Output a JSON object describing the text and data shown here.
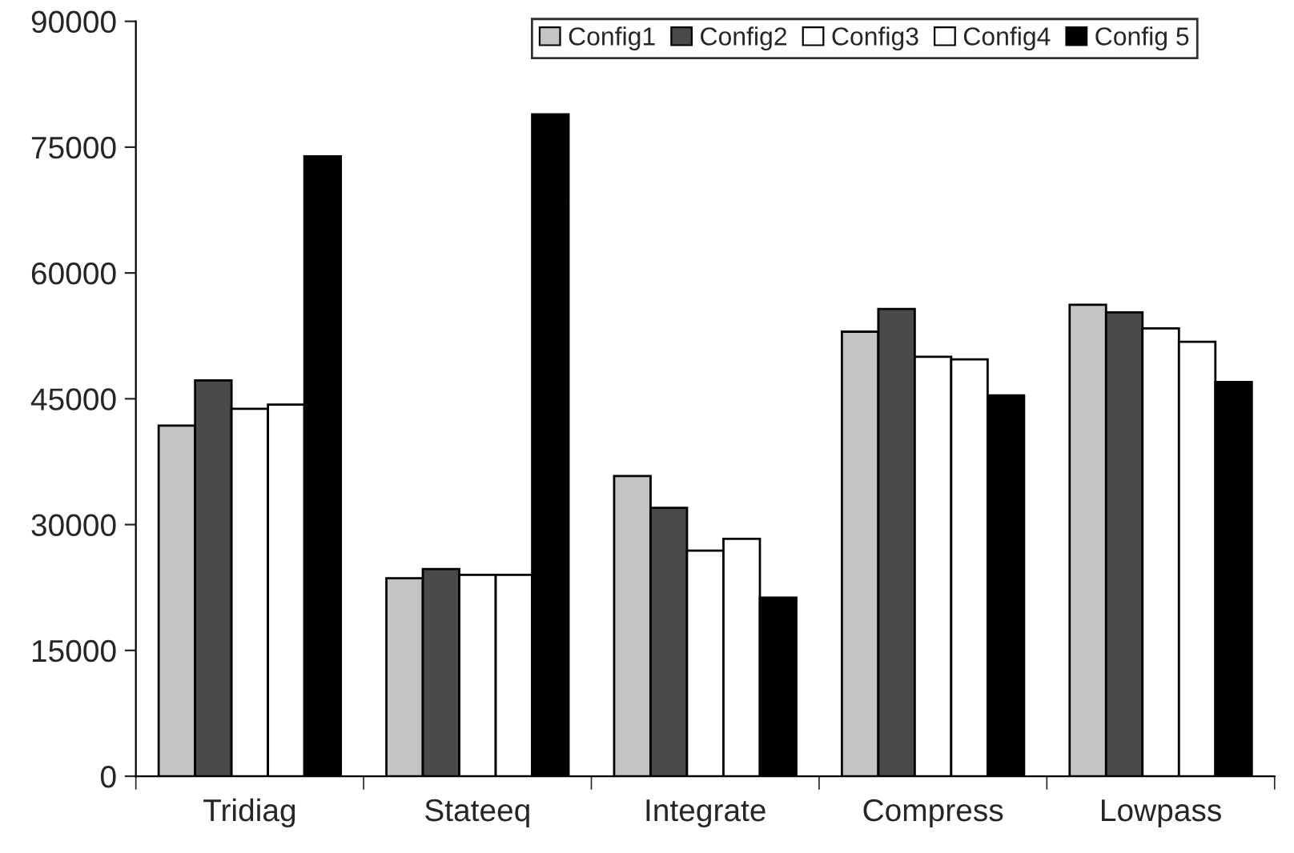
{
  "chart_data": {
    "type": "bar",
    "categories": [
      "Tridiag",
      "Stateeq",
      "Integrate",
      "Compress",
      "Lowpass"
    ],
    "series": [
      {
        "name": "Config1",
        "color": "#c4c4c4",
        "values": [
          41800,
          23600,
          35800,
          53000,
          56200
        ]
      },
      {
        "name": "Config2",
        "color": "#4a4a4a",
        "values": [
          47200,
          24700,
          32000,
          55700,
          55300
        ]
      },
      {
        "name": "Config3",
        "color": "#ffffff",
        "values": [
          43800,
          24000,
          26900,
          50000,
          53400
        ]
      },
      {
        "name": "Config4",
        "color": "#ffffff",
        "values": [
          44300,
          24000,
          28300,
          49700,
          51800
        ]
      },
      {
        "name": "Config 5",
        "color": "#000000",
        "values": [
          73900,
          78900,
          21300,
          45400,
          47000
        ]
      }
    ],
    "ylim": [
      0,
      90000
    ],
    "yticks": [
      0,
      15000,
      30000,
      45000,
      60000,
      75000,
      90000
    ],
    "grid": false,
    "legend": "top"
  }
}
